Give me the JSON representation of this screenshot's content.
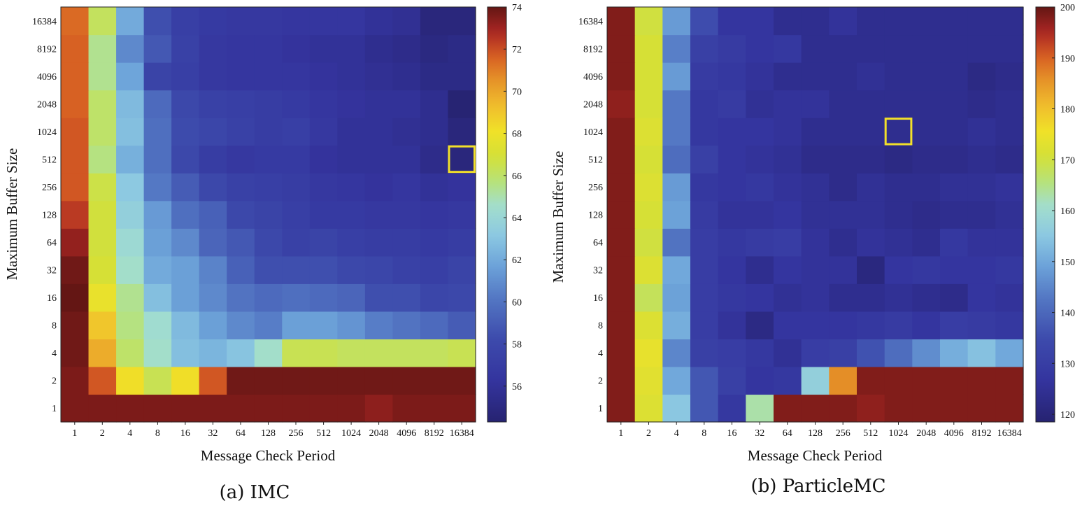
{
  "chart_data": [
    {
      "type": "heatmap",
      "caption": "(a) IMC",
      "xlabel": "Message Check Period",
      "ylabel": "Maximum Buffer Size",
      "x_categories": [
        "1",
        "2",
        "4",
        "8",
        "16",
        "32",
        "64",
        "128",
        "256",
        "512",
        "1024",
        "2048",
        "4096",
        "8192",
        "16384"
      ],
      "y_categories": [
        "1",
        "2",
        "4",
        "8",
        "16",
        "32",
        "64",
        "128",
        "256",
        "512",
        "1024",
        "2048",
        "4096",
        "8192",
        "16384"
      ],
      "colorbar": {
        "min": 54.3,
        "max": 74,
        "ticks": [
          "56",
          "58",
          "60",
          "62",
          "64",
          "66",
          "68",
          "70",
          "72",
          "74"
        ]
      },
      "highlight": {
        "x": "16384",
        "y": "512"
      },
      "values": [
        [
          73.6,
          73.6,
          73.6,
          73.6,
          73.6,
          73.6,
          73.6,
          73.6,
          73.6,
          73.6,
          73.6,
          73.3,
          73.6,
          73.6,
          73.6
        ],
        [
          73.6,
          71.8,
          68.2,
          66.4,
          68.2,
          71.8,
          73.8,
          73.8,
          73.8,
          73.8,
          73.8,
          73.8,
          73.8,
          73.8,
          73.8
        ],
        [
          73.8,
          69.8,
          66.0,
          64.6,
          62.8,
          62.4,
          63.0,
          64.6,
          66.4,
          66.4,
          66.2,
          66.2,
          66.2,
          66.2,
          66.4
        ],
        [
          73.8,
          69.0,
          65.6,
          64.4,
          62.6,
          61.6,
          60.8,
          60.4,
          61.6,
          61.6,
          61.2,
          60.4,
          60.0,
          59.6,
          59.0
        ],
        [
          74.0,
          67.8,
          65.4,
          62.8,
          61.6,
          60.8,
          60.0,
          59.6,
          59.8,
          59.6,
          59.4,
          58.4,
          58.4,
          57.8,
          58.0
        ],
        [
          73.8,
          67.0,
          64.6,
          62.0,
          61.6,
          60.6,
          59.2,
          58.4,
          58.4,
          58.4,
          58.0,
          57.8,
          57.4,
          57.2,
          57.6
        ],
        [
          73.2,
          66.8,
          64.2,
          61.6,
          60.8,
          59.4,
          58.8,
          58.0,
          57.4,
          57.6,
          57.2,
          57.0,
          57.0,
          56.8,
          57.0
        ],
        [
          72.4,
          66.8,
          63.6,
          61.4,
          59.8,
          59.2,
          58.0,
          57.6,
          57.2,
          56.8,
          56.8,
          56.6,
          56.6,
          56.4,
          56.6
        ],
        [
          71.8,
          66.6,
          63.2,
          60.2,
          59.0,
          58.0,
          57.4,
          57.2,
          57.0,
          56.6,
          56.4,
          56.2,
          56.4,
          56.0,
          56.2
        ],
        [
          71.8,
          65.6,
          62.2,
          59.8,
          58.0,
          57.0,
          56.6,
          56.8,
          56.8,
          56.2,
          56.0,
          56.0,
          56.0,
          55.4,
          54.8
        ],
        [
          71.8,
          66.0,
          62.8,
          59.8,
          58.2,
          57.8,
          57.4,
          57.0,
          57.2,
          56.6,
          56.0,
          56.0,
          55.8,
          55.6,
          54.8
        ],
        [
          71.6,
          66.0,
          62.6,
          59.6,
          58.0,
          57.4,
          57.2,
          57.0,
          56.8,
          56.4,
          56.2,
          56.0,
          56.0,
          55.6,
          54.4
        ],
        [
          71.6,
          65.4,
          61.8,
          57.6,
          57.2,
          56.6,
          56.4,
          56.4,
          56.4,
          56.2,
          56.0,
          55.8,
          55.6,
          55.2,
          55.2
        ],
        [
          71.6,
          65.4,
          60.8,
          58.8,
          57.4,
          56.6,
          56.4,
          56.4,
          56.2,
          56.0,
          56.0,
          55.6,
          55.4,
          55.0,
          55.2
        ],
        [
          71.4,
          66.2,
          62.0,
          58.4,
          57.2,
          56.8,
          56.6,
          56.6,
          56.4,
          56.4,
          56.4,
          56.0,
          55.8,
          54.8,
          54.8
        ]
      ]
    },
    {
      "type": "heatmap",
      "caption": "(b) ParticleMC",
      "xlabel": "Message Check Period",
      "ylabel": "Maximum Buffer Size",
      "x_categories": [
        "1",
        "2",
        "4",
        "8",
        "16",
        "32",
        "64",
        "128",
        "256",
        "512",
        "1024",
        "2048",
        "4096",
        "8192",
        "16384"
      ],
      "y_categories": [
        "1",
        "2",
        "4",
        "8",
        "16",
        "32",
        "64",
        "128",
        "256",
        "512",
        "1024",
        "2048",
        "4096",
        "8192",
        "16384"
      ],
      "colorbar": {
        "min": 118.5,
        "max": 200,
        "ticks": [
          "120",
          "130",
          "140",
          "150",
          "160",
          "170",
          "180",
          "190",
          "200"
        ]
      },
      "highlight": {
        "x": "1024",
        "y": "1024"
      },
      "values": [
        [
          198.0,
          172.0,
          155.0,
          137.0,
          128.0,
          163.0,
          198.0,
          198.0,
          198.0,
          197.0,
          198.0,
          198.0,
          198.0,
          198.0,
          198.0
        ],
        [
          198.0,
          173.0,
          150.0,
          137.0,
          131.0,
          127.0,
          128.0,
          157.0,
          186.0,
          198.0,
          198.0,
          198.0,
          198.0,
          198.0,
          198.0
        ],
        [
          198.0,
          174.0,
          145.0,
          131.0,
          130.0,
          128.0,
          125.0,
          130.0,
          131.0,
          136.0,
          141.0,
          146.0,
          151.0,
          154.0,
          150.0
        ],
        [
          198.0,
          172.0,
          151.0,
          130.0,
          126.0,
          122.0,
          127.0,
          127.0,
          127.0,
          128.0,
          129.0,
          127.0,
          130.0,
          129.0,
          128.0
        ],
        [
          198.0,
          168.0,
          149.0,
          130.0,
          128.0,
          127.0,
          125.0,
          126.0,
          124.0,
          124.0,
          125.0,
          124.0,
          123.0,
          127.0,
          126.0
        ],
        [
          198.0,
          172.0,
          150.0,
          130.0,
          127.0,
          124.0,
          127.0,
          126.0,
          126.0,
          121.0,
          127.0,
          128.0,
          127.0,
          127.0,
          128.0
        ],
        [
          198.0,
          170.0,
          142.0,
          130.0,
          128.0,
          129.0,
          130.0,
          126.0,
          124.0,
          126.0,
          125.0,
          124.0,
          128.0,
          126.0,
          126.0
        ],
        [
          198.0,
          171.0,
          149.0,
          129.0,
          126.0,
          126.0,
          127.0,
          125.0,
          125.0,
          125.0,
          124.0,
          123.0,
          124.0,
          124.0,
          125.0
        ],
        [
          198.0,
          172.0,
          148.0,
          128.0,
          127.0,
          128.0,
          126.0,
          125.0,
          123.0,
          125.0,
          124.0,
          124.0,
          125.0,
          125.0,
          126.0
        ],
        [
          198.0,
          171.0,
          141.0,
          131.0,
          127.0,
          126.0,
          125.0,
          123.0,
          123.0,
          123.0,
          122.0,
          123.0,
          123.0,
          124.0,
          123.0
        ],
        [
          198.0,
          172.0,
          143.0,
          128.0,
          127.0,
          127.0,
          126.0,
          124.0,
          124.0,
          124.0,
          124.0,
          124.0,
          124.0,
          125.0,
          124.0
        ],
        [
          197.0,
          171.0,
          143.0,
          128.0,
          129.0,
          125.0,
          126.0,
          126.0,
          124.0,
          124.0,
          124.0,
          124.0,
          124.0,
          123.0,
          124.0
        ],
        [
          198.0,
          171.0,
          148.0,
          129.0,
          128.0,
          126.0,
          124.0,
          124.0,
          124.0,
          125.0,
          124.0,
          124.0,
          124.0,
          122.0,
          123.0
        ],
        [
          198.0,
          171.0,
          144.0,
          131.0,
          129.0,
          127.0,
          128.0,
          124.0,
          124.0,
          124.0,
          124.0,
          124.0,
          124.0,
          124.0,
          124.0
        ],
        [
          198.0,
          170.0,
          148.0,
          135.0,
          127.0,
          127.0,
          124.0,
          124.0,
          126.0,
          124.0,
          124.0,
          124.0,
          124.0,
          124.0,
          124.0
        ]
      ]
    }
  ]
}
